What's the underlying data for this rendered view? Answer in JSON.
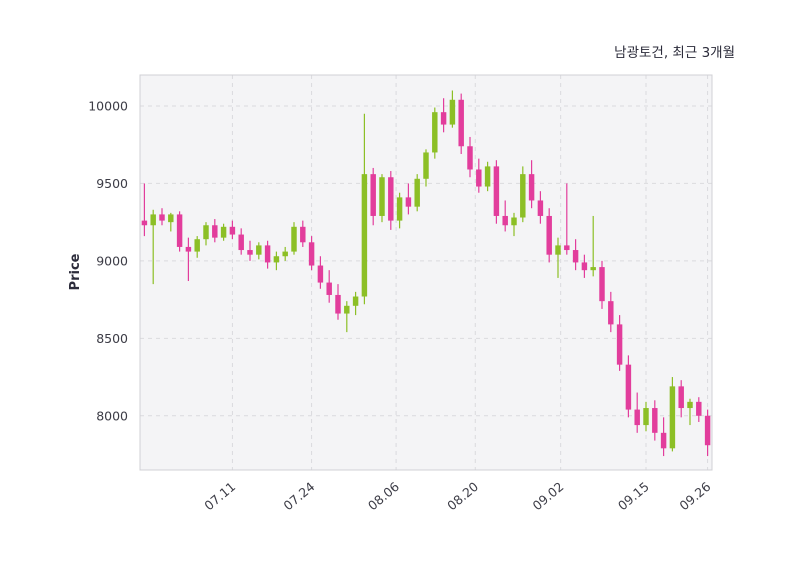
{
  "chart_data": {
    "type": "candlestick",
    "title": "남광토건, 최근 3개월",
    "ylabel": "Price",
    "xlabel": "",
    "ylim": [
      7650,
      10200
    ],
    "y_ticks": [
      8000,
      8500,
      9000,
      9500,
      10000
    ],
    "x_ticks": [
      {
        "label": "07.11",
        "i": 10
      },
      {
        "label": "07.24",
        "i": 19
      },
      {
        "label": "08.06",
        "i": 28.6
      },
      {
        "label": "08.20",
        "i": 37.6
      },
      {
        "label": "09.02",
        "i": 47.3
      },
      {
        "label": "09.15",
        "i": 57
      },
      {
        "label": "09.26",
        "i": 64
      }
    ],
    "grid": "dashed",
    "legend": "none",
    "columns": [
      "date",
      "open",
      "high",
      "low",
      "close"
    ],
    "candles": [
      [
        "06.27",
        9260,
        9500,
        9160,
        9230
      ],
      [
        "06.28",
        9230,
        9330,
        8850,
        9300
      ],
      [
        "06.29",
        9300,
        9340,
        9230,
        9260
      ],
      [
        "06.30",
        9250,
        9310,
        9190,
        9300
      ],
      [
        "07.03",
        9300,
        9320,
        9060,
        9090
      ],
      [
        "07.04",
        9090,
        9150,
        8870,
        9060
      ],
      [
        "07.05",
        9060,
        9160,
        9020,
        9140
      ],
      [
        "07.06",
        9140,
        9250,
        9100,
        9230
      ],
      [
        "07.07",
        9230,
        9270,
        9120,
        9150
      ],
      [
        "07.10",
        9150,
        9240,
        9130,
        9220
      ],
      [
        "07.11",
        9220,
        9260,
        9140,
        9170
      ],
      [
        "07.12",
        9170,
        9210,
        9040,
        9070
      ],
      [
        "07.13",
        9070,
        9130,
        9000,
        9040
      ],
      [
        "07.14",
        9040,
        9120,
        9010,
        9100
      ],
      [
        "07.17",
        9100,
        9130,
        8950,
        8990
      ],
      [
        "07.18",
        8990,
        9060,
        8940,
        9030
      ],
      [
        "07.19",
        9030,
        9090,
        9000,
        9060
      ],
      [
        "07.20",
        9060,
        9250,
        9040,
        9220
      ],
      [
        "07.21",
        9220,
        9260,
        9090,
        9120
      ],
      [
        "07.24",
        9120,
        9160,
        8940,
        8970
      ],
      [
        "07.25",
        8970,
        9030,
        8820,
        8860
      ],
      [
        "07.26",
        8860,
        8940,
        8730,
        8780
      ],
      [
        "07.27",
        8780,
        8850,
        8620,
        8660
      ],
      [
        "07.28",
        8660,
        8740,
        8540,
        8710
      ],
      [
        "07.31",
        8710,
        8800,
        8650,
        8770
      ],
      [
        "08.01",
        8770,
        9950,
        8720,
        9560
      ],
      [
        "08.02",
        9560,
        9600,
        9230,
        9290
      ],
      [
        "08.03",
        9290,
        9560,
        9250,
        9540
      ],
      [
        "08.04",
        9540,
        9580,
        9200,
        9260
      ],
      [
        "08.07",
        9260,
        9440,
        9210,
        9410
      ],
      [
        "08.08",
        9410,
        9500,
        9300,
        9350
      ],
      [
        "08.09",
        9350,
        9560,
        9320,
        9530
      ],
      [
        "08.10",
        9530,
        9720,
        9480,
        9700
      ],
      [
        "08.11",
        9700,
        9990,
        9660,
        9960
      ],
      [
        "08.14",
        9960,
        10050,
        9830,
        9880
      ],
      [
        "08.16",
        9880,
        10100,
        9860,
        10040
      ],
      [
        "08.17",
        10040,
        10080,
        9690,
        9740
      ],
      [
        "08.18",
        9740,
        9800,
        9540,
        9590
      ],
      [
        "08.21",
        9590,
        9660,
        9440,
        9480
      ],
      [
        "08.22",
        9480,
        9640,
        9450,
        9610
      ],
      [
        "08.23",
        9610,
        9650,
        9240,
        9290
      ],
      [
        "08.24",
        9290,
        9390,
        9190,
        9230
      ],
      [
        "08.25",
        9230,
        9310,
        9160,
        9280
      ],
      [
        "08.28",
        9280,
        9610,
        9250,
        9560
      ],
      [
        "08.29",
        9560,
        9650,
        9340,
        9390
      ],
      [
        "08.30",
        9390,
        9450,
        9240,
        9290
      ],
      [
        "08.31",
        9290,
        9340,
        8990,
        9040
      ],
      [
        "09.01",
        9040,
        9150,
        8890,
        9100
      ],
      [
        "09.04",
        9100,
        9500,
        9040,
        9070
      ],
      [
        "09.05",
        9070,
        9140,
        8940,
        8990
      ],
      [
        "09.06",
        8990,
        9040,
        8890,
        8940
      ],
      [
        "09.07",
        8940,
        9290,
        8900,
        8960
      ],
      [
        "09.08",
        8960,
        9000,
        8690,
        8740
      ],
      [
        "09.11",
        8740,
        8800,
        8540,
        8590
      ],
      [
        "09.12",
        8590,
        8650,
        8290,
        8330
      ],
      [
        "09.13",
        8330,
        8390,
        7990,
        8040
      ],
      [
        "09.14",
        8040,
        8150,
        7890,
        7940
      ],
      [
        "09.15",
        7940,
        8090,
        7900,
        8050
      ],
      [
        "09.18",
        8050,
        8100,
        7840,
        7890
      ],
      [
        "09.19",
        7890,
        7990,
        7740,
        7790
      ],
      [
        "09.20",
        7790,
        8250,
        7770,
        8190
      ],
      [
        "09.21",
        8190,
        8230,
        7990,
        8050
      ],
      [
        "09.22",
        8050,
        8110,
        7940,
        8090
      ],
      [
        "09.25",
        8090,
        8120,
        7960,
        8000
      ],
      [
        "09.26",
        8000,
        8040,
        7740,
        7810
      ]
    ],
    "colors": {
      "up": "#8cbf26",
      "down": "#e23d9c",
      "plot_bg": "#f4f4f6",
      "grid": "#dadade",
      "border": "#d0d0d5",
      "text": "#3c3c46",
      "figure_bg": "#ffffff"
    }
  }
}
